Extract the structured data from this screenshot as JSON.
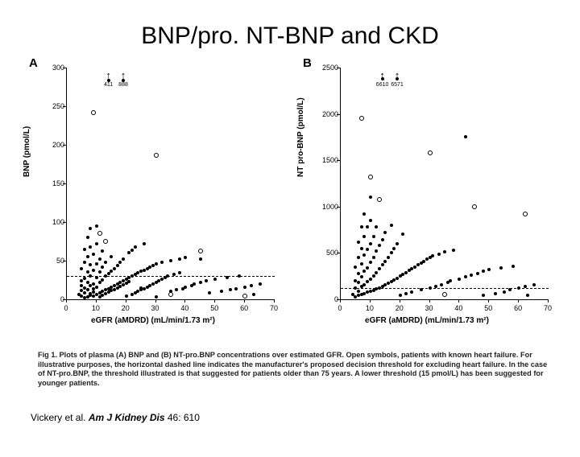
{
  "title": "BNP/pro. NT-BNP and CKD",
  "panelA": {
    "label": "A",
    "ylabel": "BNP (pmol/L)",
    "xlabel": "eGFR (aMDRD) (mL/min/1.73 m²)",
    "ylim": [
      0,
      300
    ],
    "ytick_step": 50,
    "xlim": [
      0,
      70
    ],
    "xtick_step": 10,
    "dash_y": 29,
    "point_size": 4,
    "arrows": [
      {
        "x": 14,
        "label": "411"
      },
      {
        "x": 19,
        "label": "888"
      }
    ],
    "filled_points": [
      [
        4,
        6
      ],
      [
        5,
        4
      ],
      [
        5,
        11
      ],
      [
        5,
        18
      ],
      [
        5,
        24
      ],
      [
        5,
        40
      ],
      [
        6,
        2
      ],
      [
        6,
        8
      ],
      [
        6,
        15
      ],
      [
        6,
        27
      ],
      [
        6,
        48
      ],
      [
        6,
        65
      ],
      [
        7,
        3
      ],
      [
        7,
        12
      ],
      [
        7,
        22
      ],
      [
        7,
        35
      ],
      [
        7,
        55
      ],
      [
        7,
        80
      ],
      [
        8,
        5
      ],
      [
        8,
        18
      ],
      [
        8,
        30
      ],
      [
        8,
        45
      ],
      [
        8,
        68
      ],
      [
        8,
        92
      ],
      [
        8,
        7
      ],
      [
        9,
        9
      ],
      [
        9,
        20
      ],
      [
        9,
        38
      ],
      [
        9,
        58
      ],
      [
        9,
        14
      ],
      [
        9,
        4
      ],
      [
        10,
        6
      ],
      [
        10,
        16
      ],
      [
        10,
        28
      ],
      [
        10,
        46
      ],
      [
        10,
        72
      ],
      [
        10,
        95
      ],
      [
        11,
        8
      ],
      [
        11,
        22
      ],
      [
        11,
        35
      ],
      [
        11,
        52
      ],
      [
        11,
        3
      ],
      [
        12,
        10
      ],
      [
        12,
        25
      ],
      [
        12,
        42
      ],
      [
        12,
        62
      ],
      [
        12,
        5
      ],
      [
        13,
        12
      ],
      [
        13,
        30
      ],
      [
        13,
        48
      ],
      [
        13,
        7
      ],
      [
        14,
        14
      ],
      [
        14,
        33
      ],
      [
        14,
        9
      ],
      [
        14,
        283
      ],
      [
        15,
        16
      ],
      [
        15,
        36
      ],
      [
        15,
        55
      ],
      [
        15,
        11
      ],
      [
        16,
        18
      ],
      [
        16,
        40
      ],
      [
        16,
        13
      ],
      [
        17,
        20
      ],
      [
        17,
        44
      ],
      [
        17,
        15
      ],
      [
        18,
        22
      ],
      [
        18,
        48
      ],
      [
        18,
        17
      ],
      [
        19,
        24
      ],
      [
        19,
        52
      ],
      [
        19,
        283
      ],
      [
        19,
        19
      ],
      [
        20,
        26
      ],
      [
        20,
        21
      ],
      [
        20,
        4
      ],
      [
        21,
        28
      ],
      [
        21,
        60
      ],
      [
        21,
        23
      ],
      [
        22,
        30
      ],
      [
        22,
        64
      ],
      [
        22,
        6
      ],
      [
        23,
        32
      ],
      [
        23,
        68
      ],
      [
        23,
        8
      ],
      [
        24,
        34
      ],
      [
        24,
        10
      ],
      [
        25,
        15
      ],
      [
        25,
        36
      ],
      [
        25,
        12
      ],
      [
        26,
        38
      ],
      [
        26,
        72
      ],
      [
        26,
        14
      ],
      [
        27,
        40
      ],
      [
        27,
        16
      ],
      [
        28,
        42
      ],
      [
        28,
        18
      ],
      [
        29,
        44
      ],
      [
        29,
        20
      ],
      [
        30,
        46
      ],
      [
        30,
        22
      ],
      [
        30,
        3
      ],
      [
        31,
        24
      ],
      [
        32,
        48
      ],
      [
        32,
        26
      ],
      [
        33,
        28
      ],
      [
        34,
        30
      ],
      [
        35,
        50
      ],
      [
        35,
        10
      ],
      [
        36,
        32
      ],
      [
        37,
        12
      ],
      [
        38,
        52
      ],
      [
        38,
        34
      ],
      [
        39,
        14
      ],
      [
        40,
        16
      ],
      [
        40,
        54
      ],
      [
        42,
        18
      ],
      [
        43,
        20
      ],
      [
        45,
        22
      ],
      [
        45,
        52
      ],
      [
        47,
        24
      ],
      [
        48,
        8
      ],
      [
        50,
        26
      ],
      [
        52,
        10
      ],
      [
        54,
        28
      ],
      [
        55,
        12
      ],
      [
        57,
        14
      ],
      [
        58,
        30
      ],
      [
        60,
        16
      ],
      [
        62,
        18
      ],
      [
        63,
        6
      ],
      [
        65,
        20
      ]
    ],
    "open_points": [
      [
        9,
        242
      ],
      [
        11,
        85
      ],
      [
        13,
        75
      ],
      [
        30,
        186
      ],
      [
        35,
        6
      ],
      [
        45,
        62
      ],
      [
        60,
        4
      ]
    ]
  },
  "panelB": {
    "label": "B",
    "ylabel": "NT pro-BNP (pmol/L)",
    "xlabel": "eGFR (aMDRD) (mL/min/1.73 m²)",
    "ylim": [
      0,
      2500
    ],
    "ytick_step": 500,
    "xlim": [
      0,
      70
    ],
    "xtick_step": 10,
    "dash_y": 110,
    "point_size": 4,
    "arrows": [
      {
        "x": 14,
        "label": "6610"
      },
      {
        "x": 19,
        "label": "6571"
      }
    ],
    "filled_points": [
      [
        4,
        50
      ],
      [
        5,
        30
      ],
      [
        5,
        120
      ],
      [
        5,
        200
      ],
      [
        5,
        350
      ],
      [
        6,
        40
      ],
      [
        6,
        90
      ],
      [
        6,
        180
      ],
      [
        6,
        280
      ],
      [
        6,
        450
      ],
      [
        6,
        620
      ],
      [
        7,
        55
      ],
      [
        7,
        140
      ],
      [
        7,
        240
      ],
      [
        7,
        380
      ],
      [
        7,
        550
      ],
      [
        7,
        780
      ],
      [
        8,
        65
      ],
      [
        8,
        160
      ],
      [
        8,
        300
      ],
      [
        8,
        480
      ],
      [
        8,
        680
      ],
      [
        8,
        920
      ],
      [
        9,
        75
      ],
      [
        9,
        190
      ],
      [
        9,
        340
      ],
      [
        9,
        540
      ],
      [
        9,
        780
      ],
      [
        10,
        85
      ],
      [
        10,
        220
      ],
      [
        10,
        400
      ],
      [
        10,
        600
      ],
      [
        10,
        850
      ],
      [
        10,
        1100
      ],
      [
        11,
        95
      ],
      [
        11,
        250
      ],
      [
        11,
        450
      ],
      [
        11,
        680
      ],
      [
        12,
        110
      ],
      [
        12,
        290
      ],
      [
        12,
        520
      ],
      [
        12,
        780
      ],
      [
        13,
        125
      ],
      [
        13,
        330
      ],
      [
        13,
        580
      ],
      [
        14,
        140
      ],
      [
        14,
        370
      ],
      [
        14,
        640
      ],
      [
        14,
        2380
      ],
      [
        15,
        155
      ],
      [
        15,
        410
      ],
      [
        15,
        720
      ],
      [
        16,
        170
      ],
      [
        16,
        450
      ],
      [
        17,
        190
      ],
      [
        17,
        500
      ],
      [
        17,
        800
      ],
      [
        18,
        210
      ],
      [
        18,
        550
      ],
      [
        19,
        230
      ],
      [
        19,
        600
      ],
      [
        19,
        2380
      ],
      [
        20,
        250
      ],
      [
        20,
        40
      ],
      [
        21,
        270
      ],
      [
        21,
        700
      ],
      [
        22,
        290
      ],
      [
        22,
        60
      ],
      [
        23,
        310
      ],
      [
        24,
        330
      ],
      [
        24,
        80
      ],
      [
        25,
        350
      ],
      [
        26,
        370
      ],
      [
        27,
        390
      ],
      [
        27,
        100
      ],
      [
        28,
        410
      ],
      [
        29,
        430
      ],
      [
        30,
        450
      ],
      [
        30,
        120
      ],
      [
        31,
        470
      ],
      [
        32,
        140
      ],
      [
        33,
        490
      ],
      [
        34,
        160
      ],
      [
        35,
        510
      ],
      [
        36,
        180
      ],
      [
        37,
        200
      ],
      [
        38,
        530
      ],
      [
        40,
        220
      ],
      [
        42,
        240
      ],
      [
        42,
        1750
      ],
      [
        44,
        260
      ],
      [
        46,
        280
      ],
      [
        48,
        300
      ],
      [
        48,
        40
      ],
      [
        50,
        320
      ],
      [
        52,
        60
      ],
      [
        54,
        340
      ],
      [
        55,
        80
      ],
      [
        57,
        100
      ],
      [
        58,
        360
      ],
      [
        60,
        120
      ],
      [
        62,
        140
      ],
      [
        63,
        40
      ],
      [
        65,
        160
      ]
    ],
    "open_points": [
      [
        7,
        1950
      ],
      [
        10,
        1320
      ],
      [
        13,
        1080
      ],
      [
        30,
        1580
      ],
      [
        45,
        1000
      ],
      [
        62,
        920
      ],
      [
        35,
        50
      ]
    ]
  },
  "caption": "Fig 1.  Plots of plasma (A) BNP and (B) NT-pro.BNP concentrations over estimated GFR. Open symbols, patients with known heart failure. For illustrative purposes, the horizontal dashed line indicates the manufacturer's proposed decision threshold for excluding heart failure. In the case of NT-pro.BNP, the threshold illustrated is that suggested for patients older than 75 years. A lower threshold (15 pmol/L) has been suggested for younger patients.",
  "citation_author": "Vickery et al. ",
  "citation_journal": "Am J Kidney Dis",
  "citation_ref": " 46: 610",
  "colors": {
    "bg": "#ffffff",
    "fg": "#000000"
  }
}
